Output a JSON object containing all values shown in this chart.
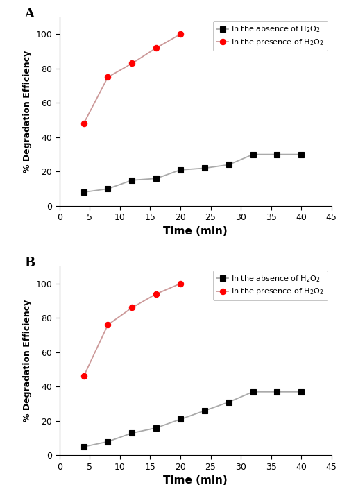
{
  "panel_A": {
    "label": "A",
    "absence_x": [
      4,
      8,
      12,
      16,
      20,
      24,
      28,
      32,
      36,
      40
    ],
    "absence_y": [
      8,
      10,
      15,
      16,
      21,
      22,
      24,
      30,
      30,
      30
    ],
    "presence_x": [
      4,
      8,
      12,
      16,
      20
    ],
    "presence_y": [
      48,
      75,
      83,
      92,
      100
    ],
    "ylim": [
      0,
      110
    ],
    "yticks": [
      0,
      20,
      40,
      60,
      80,
      100
    ],
    "xlim": [
      0,
      45
    ],
    "xticks": [
      0,
      5,
      10,
      15,
      20,
      25,
      30,
      35,
      40,
      45
    ]
  },
  "panel_B": {
    "label": "B",
    "absence_x": [
      4,
      8,
      12,
      16,
      20,
      24,
      28,
      32,
      36,
      40
    ],
    "absence_y": [
      5,
      8,
      13,
      16,
      21,
      26,
      31,
      37,
      37,
      37
    ],
    "presence_x": [
      4,
      8,
      12,
      16,
      20
    ],
    "presence_y": [
      46,
      76,
      86,
      94,
      100
    ],
    "ylim": [
      0,
      110
    ],
    "yticks": [
      0,
      20,
      40,
      60,
      80,
      100
    ],
    "xlim": [
      0,
      45
    ],
    "xticks": [
      0,
      5,
      10,
      15,
      20,
      25,
      30,
      35,
      40,
      45
    ]
  },
  "line_color_absence": "#aaaaaa",
  "line_color_presence": "#cc9999",
  "absence_marker": "s",
  "presence_marker": "o",
  "absence_marker_color": "#000000",
  "presence_marker_color": "#ff0000",
  "absence_label": "In the absence of H$_2$O$_2$",
  "presence_label": "In the presence of H$_2$O$_2$",
  "xlabel": "Time (min)",
  "ylabel": "% Degradation Efficiency",
  "marker_size": 6,
  "linewidth": 1.3,
  "bg_color": "#ffffff",
  "tick_labelsize": 9,
  "xlabel_fontsize": 11,
  "ylabel_fontsize": 9,
  "legend_fontsize": 8,
  "panel_label_fontsize": 13
}
